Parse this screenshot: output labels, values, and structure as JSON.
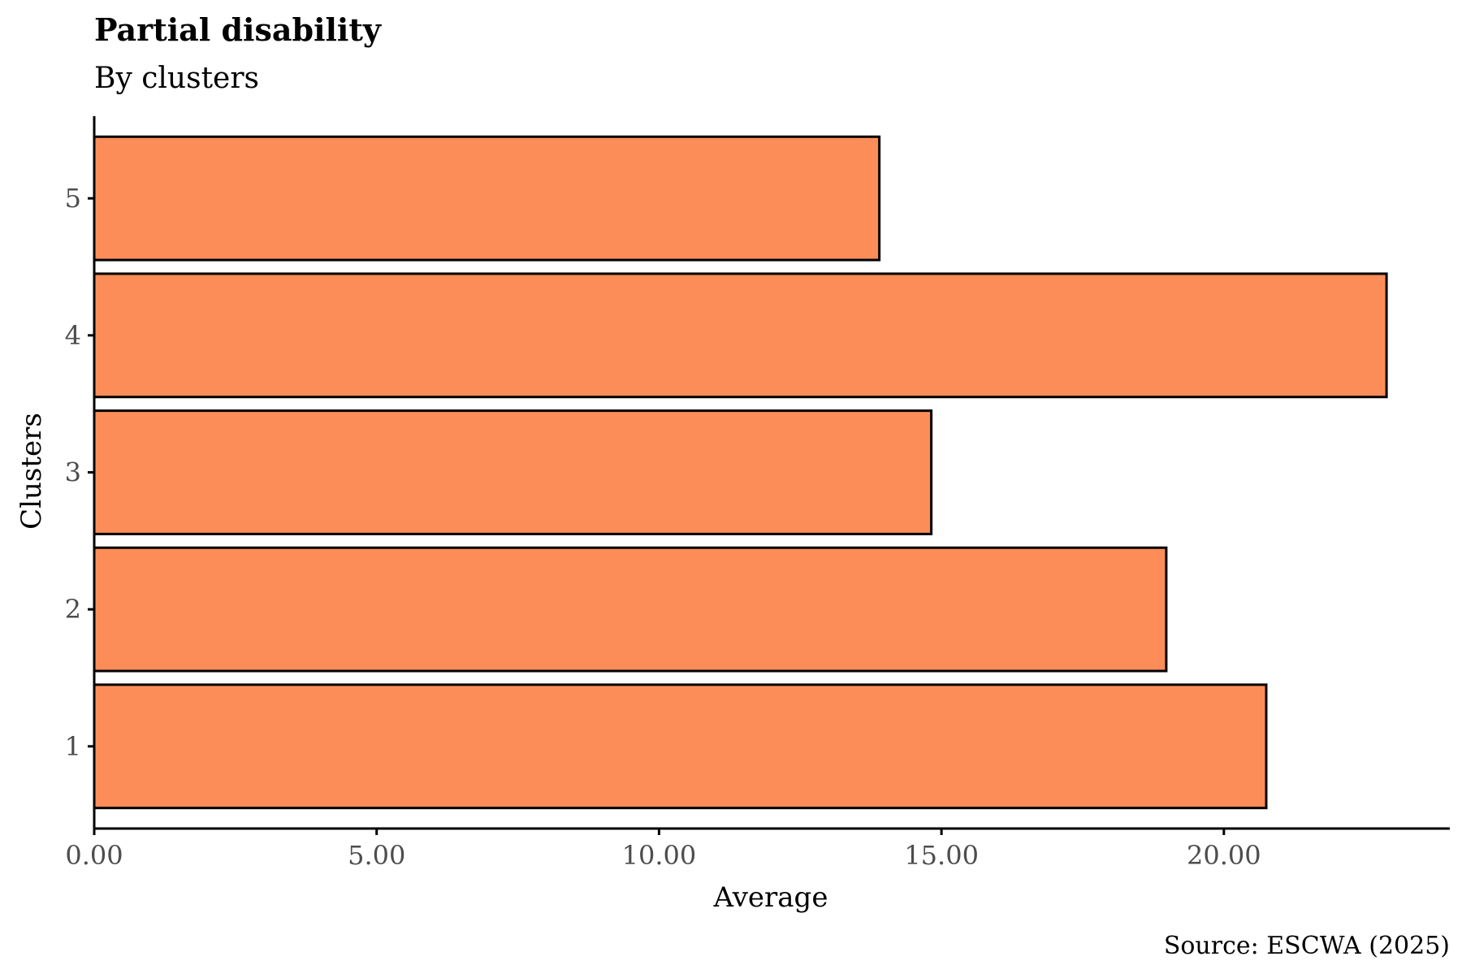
{
  "chart_data": {
    "type": "bar",
    "orientation": "horizontal",
    "title": "Partial disability",
    "subtitle": "By clusters",
    "xlabel": "Average",
    "ylabel": "Clusters",
    "caption": "Source: ESCWA (2025)",
    "categories": [
      "1",
      "2",
      "3",
      "4",
      "5"
    ],
    "values": [
      20.75,
      18.98,
      14.82,
      22.88,
      13.9
    ],
    "xlim": [
      0,
      24.0
    ],
    "x_ticks": [
      0,
      5,
      10,
      15,
      20
    ],
    "x_tick_labels": [
      "0.00",
      "5.00",
      "10.00",
      "15.00",
      "20.00"
    ],
    "grid": false,
    "legend": "none",
    "bar_color": "#FC8D59",
    "bar_outline_color": "#000000"
  }
}
